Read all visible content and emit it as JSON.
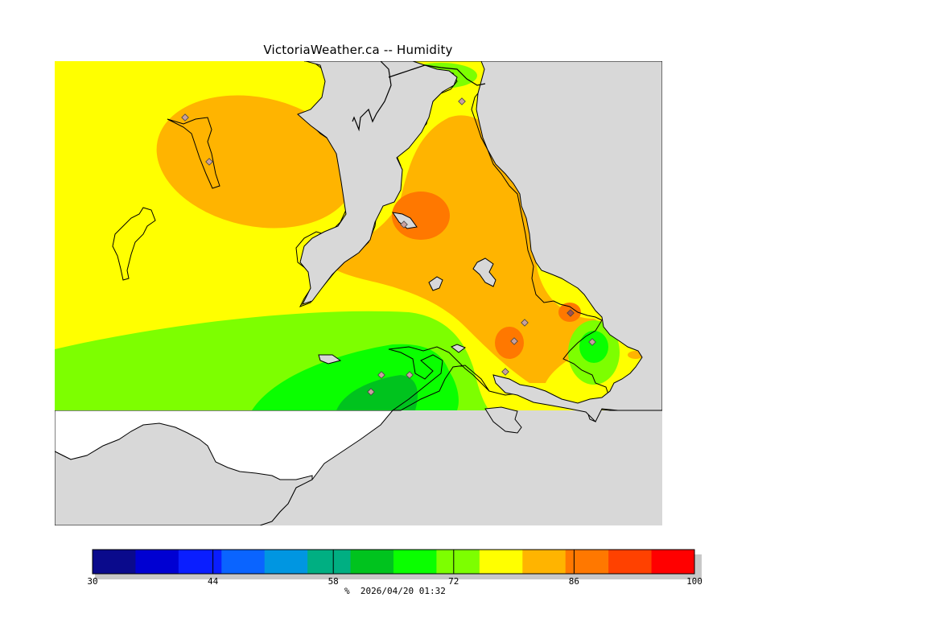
{
  "title": "VictoriaWeather.ca -- Humidity",
  "legend": {
    "unit": "%",
    "timestamp": "2026/04/20 01:32",
    "min": 30,
    "max": 100,
    "tick_labels": [
      "30",
      "44",
      "58",
      "72",
      "86",
      "100"
    ],
    "tick_values": [
      30,
      44,
      58,
      72,
      86,
      100
    ],
    "color_bins": [
      {
        "from": 30,
        "to": 35,
        "color": "#0a0a8c"
      },
      {
        "from": 35,
        "to": 40,
        "color": "#0000d2"
      },
      {
        "from": 40,
        "to": 45,
        "color": "#0a1eff"
      },
      {
        "from": 45,
        "to": 50,
        "color": "#0a64ff"
      },
      {
        "from": 50,
        "to": 55,
        "color": "#0096e1"
      },
      {
        "from": 55,
        "to": 60,
        "color": "#00af82"
      },
      {
        "from": 60,
        "to": 65,
        "color": "#00c31e"
      },
      {
        "from": 65,
        "to": 70,
        "color": "#0aff00"
      },
      {
        "from": 70,
        "to": 75,
        "color": "#7dff00"
      },
      {
        "from": 75,
        "to": 80,
        "color": "#ffff00"
      },
      {
        "from": 80,
        "to": 85,
        "color": "#ffb400"
      },
      {
        "from": 85,
        "to": 90,
        "color": "#ff7800"
      },
      {
        "from": 90,
        "to": 95,
        "color": "#ff4100"
      },
      {
        "from": 95,
        "to": 100,
        "color": "#ff0000"
      }
    ]
  },
  "colors": {
    "no_data": "#d8d8d8",
    "coastline": "#000000",
    "station_marker": "#999999"
  }
}
